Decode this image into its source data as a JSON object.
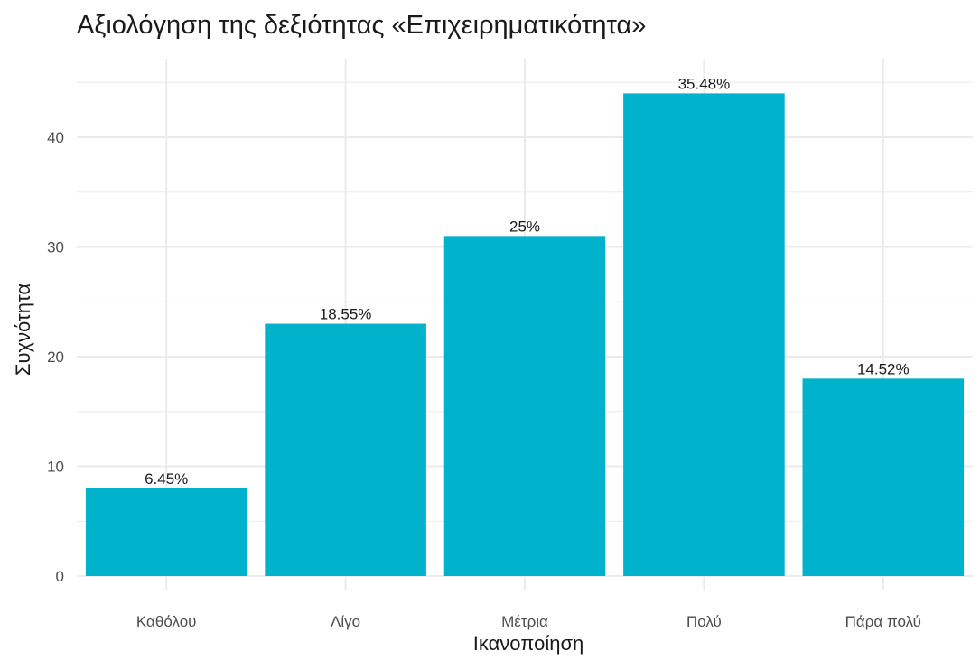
{
  "chart_data": {
    "type": "bar",
    "title": "Αξιολόγηση της δεξιότητας «Επιχειρηματικότητα»",
    "xlabel": "Ικανοποίηση",
    "ylabel": "Συχνότητα",
    "categories": [
      "Καθόλου",
      "Λίγο",
      "Μέτρια",
      "Πολύ",
      "Πάρα πολύ"
    ],
    "values": [
      8,
      23,
      31,
      44,
      18
    ],
    "data_labels": [
      "6.45%",
      "18.55%",
      "25%",
      "35.48%",
      "14.52%"
    ],
    "y_ticks": [
      0,
      10,
      20,
      30,
      40
    ],
    "ylim": [
      0,
      45
    ],
    "grid": true,
    "bar_color": "#00B2CC",
    "grid_color": "#EBEBEB"
  }
}
